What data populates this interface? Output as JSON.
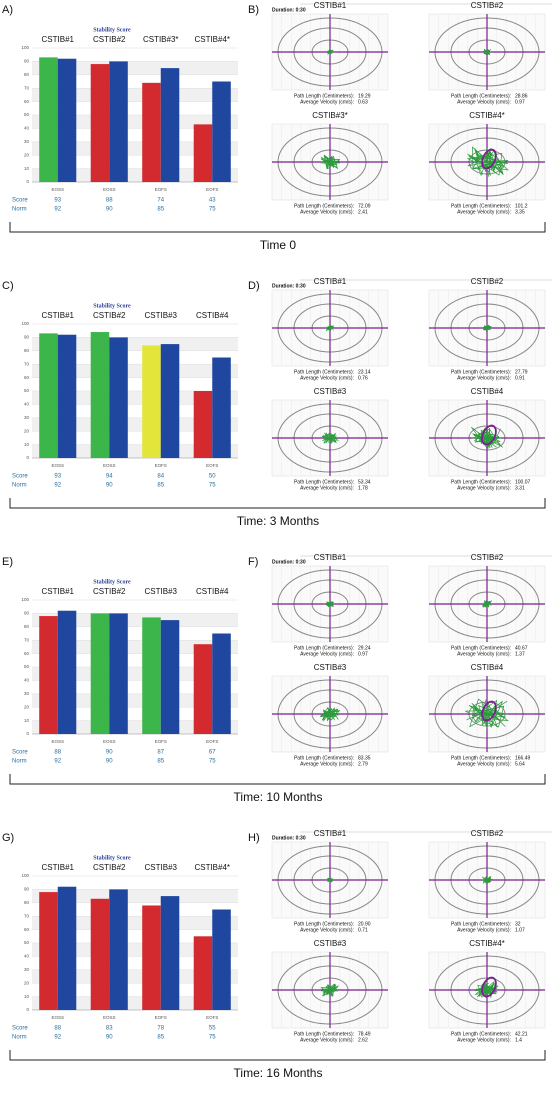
{
  "chart_data": [
    {
      "type": "bar",
      "panel_label": "A)",
      "title": "Stability Score",
      "categories": [
        "CSTIB#1",
        "CSTIB#2",
        "CSTIB#3*",
        "CSTIB#4*"
      ],
      "condition_labels": [
        "EOSS",
        "EOSS",
        "EOFS",
        "EOFS"
      ],
      "series": [
        {
          "name": "Score",
          "colors": [
            "#3cb54a",
            "#d22a2e",
            "#d22a2e",
            "#d22a2e"
          ],
          "values": [
            93,
            88,
            74,
            43
          ]
        },
        {
          "name": "Norm",
          "color": "#1f47a0",
          "values": [
            92,
            90,
            85,
            75
          ]
        }
      ],
      "ylim": [
        0,
        100
      ],
      "yticks": [
        0,
        10,
        20,
        30,
        40,
        50,
        60,
        70,
        80,
        90,
        100
      ],
      "grid": true,
      "time_label": "Time 0"
    },
    {
      "type": "bar",
      "panel_label": "C)",
      "title": "Stability Score",
      "categories": [
        "CSTIB#1",
        "CSTIB#2",
        "CSTIB#3",
        "CSTIB#4"
      ],
      "condition_labels": [
        "EOSS",
        "EOSS",
        "EOFS",
        "EOFS"
      ],
      "series": [
        {
          "name": "Score",
          "colors": [
            "#3cb54a",
            "#3cb54a",
            "#e3e53a",
            "#d22a2e"
          ],
          "values": [
            93,
            94,
            84,
            50
          ]
        },
        {
          "name": "Norm",
          "color": "#1f47a0",
          "values": [
            92,
            90,
            85,
            75
          ]
        }
      ],
      "ylim": [
        0,
        100
      ],
      "yticks": [
        0,
        10,
        20,
        30,
        40,
        50,
        60,
        70,
        80,
        90,
        100
      ],
      "grid": true,
      "time_label": "Time: 3 Months"
    },
    {
      "type": "bar",
      "panel_label": "E)",
      "title": "Stability Score",
      "categories": [
        "CSTIB#1",
        "CSTIB#2",
        "CSTIB#3",
        "CSTIB#4"
      ],
      "condition_labels": [
        "EOSS",
        "EOSS",
        "EOFS",
        "EOFS"
      ],
      "series": [
        {
          "name": "Score",
          "colors": [
            "#d22a2e",
            "#3cb54a",
            "#3cb54a",
            "#d22a2e"
          ],
          "values": [
            88,
            90,
            87,
            67
          ]
        },
        {
          "name": "Norm",
          "color": "#1f47a0",
          "values": [
            92,
            90,
            85,
            75
          ]
        }
      ],
      "ylim": [
        0,
        100
      ],
      "yticks": [
        0,
        10,
        20,
        30,
        40,
        50,
        60,
        70,
        80,
        90,
        100
      ],
      "grid": true,
      "time_label": "Time: 10 Months"
    },
    {
      "type": "bar",
      "panel_label": "G)",
      "title": "Stability Score",
      "categories": [
        "CSTIB#1",
        "CSTIB#2",
        "CSTIB#3",
        "CSTIB#4*"
      ],
      "condition_labels": [
        "EOSS",
        "EOSS",
        "EOFS",
        "EOFS"
      ],
      "series": [
        {
          "name": "Score",
          "colors": [
            "#d22a2e",
            "#d22a2e",
            "#d22a2e",
            "#d22a2e"
          ],
          "values": [
            88,
            83,
            78,
            55
          ]
        },
        {
          "name": "Norm",
          "color": "#1f47a0",
          "values": [
            92,
            90,
            85,
            75
          ]
        }
      ],
      "ylim": [
        0,
        100
      ],
      "yticks": [
        0,
        10,
        20,
        30,
        40,
        50,
        60,
        70,
        80,
        90,
        100
      ],
      "grid": true,
      "time_label": "Time: 16 Months"
    }
  ],
  "sway_panels": [
    {
      "panel_label": "B)",
      "duration": "Duration: 0:30",
      "path_length_label": "Path Length (Centimeters):",
      "velocity_label": "Average Velocity (cm/s):",
      "plots": [
        {
          "title": "CSTIB#1",
          "path_length": "19.29",
          "velocity": "0.63"
        },
        {
          "title": "CSTIB#2",
          "path_length": "28.86",
          "velocity": "0.97"
        },
        {
          "title": "CSTIB#3*",
          "path_length": "72.09",
          "velocity": "2.41"
        },
        {
          "title": "CSTIB#4*",
          "path_length": "101.2",
          "velocity": "3.35"
        }
      ]
    },
    {
      "panel_label": "D)",
      "duration": "Duration: 0:30",
      "path_length_label": "Path Length (Centimeters):",
      "velocity_label": "Average Velocity (cm/s):",
      "plots": [
        {
          "title": "CSTIB#1",
          "path_length": "23.14",
          "velocity": "0.76"
        },
        {
          "title": "CSTIB#2",
          "path_length": "27.79",
          "velocity": "0.91"
        },
        {
          "title": "CSTIB#3",
          "path_length": "53.34",
          "velocity": "1.78"
        },
        {
          "title": "CSTIB#4",
          "path_length": "100.07",
          "velocity": "3.31"
        }
      ]
    },
    {
      "panel_label": "F)",
      "duration": "Duration: 0:30",
      "path_length_label": "Path Length (Centimeters):",
      "velocity_label": "Average Velocity (cm/s):",
      "plots": [
        {
          "title": "CSTIB#1",
          "path_length": "29.24",
          "velocity": "0.97"
        },
        {
          "title": "CSTIB#2",
          "path_length": "40.67",
          "velocity": "1.37"
        },
        {
          "title": "CSTIB#3",
          "path_length": "83.35",
          "velocity": "2.79"
        },
        {
          "title": "CSTIB#4",
          "path_length": "166.49",
          "velocity": "5.64"
        }
      ]
    },
    {
      "panel_label": "H)",
      "duration": "Duration: 0:30",
      "path_length_label": "Path Length (Centimeters):",
      "velocity_label": "Average Velocity (cm/s):",
      "plots": [
        {
          "title": "CSTIB#1",
          "path_length": "20.90",
          "velocity": "0.71"
        },
        {
          "title": "CSTIB#2",
          "path_length": "32",
          "velocity": "1.07"
        },
        {
          "title": "CSTIB#3",
          "path_length": "78.49",
          "velocity": "2.62"
        },
        {
          "title": "CSTIB#4*",
          "path_length": "42.21",
          "velocity": "1.4"
        }
      ]
    }
  ]
}
